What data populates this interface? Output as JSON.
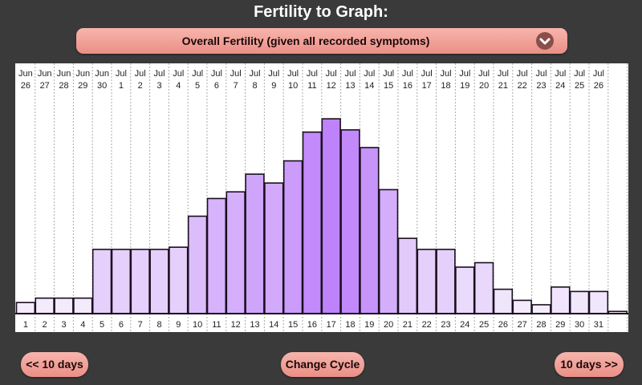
{
  "header": {
    "title": "Fertility to Graph:"
  },
  "selector": {
    "value": "Overall Fertility (given all recorded symptoms)",
    "icon": "chevron-down-icon"
  },
  "buttons": {
    "prev": "<< 10 days",
    "change": "Change Cycle",
    "next": "10 days >>"
  },
  "colors": {
    "background": "#3a3a3a",
    "button": "#f0a098",
    "bar_light": "#f5f0fc",
    "bar_peak": "#c084fa"
  },
  "chart_data": {
    "type": "bar",
    "title": "Overall Fertility (given all recorded symptoms)",
    "xlabel": "Cycle day",
    "ylabel": "Fertility",
    "ylim": [
      0,
      100
    ],
    "grid": "vertical-dotted",
    "date_labels": [
      [
        "Jun",
        "26"
      ],
      [
        "Jun",
        "27"
      ],
      [
        "Jun",
        "28"
      ],
      [
        "Jun",
        "29"
      ],
      [
        "Jun",
        "30"
      ],
      [
        "Jul",
        "1"
      ],
      [
        "Jul",
        "2"
      ],
      [
        "Jul",
        "3"
      ],
      [
        "Jul",
        "4"
      ],
      [
        "Jul",
        "5"
      ],
      [
        "Jul",
        "6"
      ],
      [
        "Jul",
        "7"
      ],
      [
        "Jul",
        "8"
      ],
      [
        "Jul",
        "9"
      ],
      [
        "Jul",
        "10"
      ],
      [
        "Jul",
        "11"
      ],
      [
        "Jul",
        "12"
      ],
      [
        "Jul",
        "13"
      ],
      [
        "Jul",
        "14"
      ],
      [
        "Jul",
        "15"
      ],
      [
        "Jul",
        "16"
      ],
      [
        "Jul",
        "17"
      ],
      [
        "Jul",
        "18"
      ],
      [
        "Jul",
        "19"
      ],
      [
        "Jul",
        "20"
      ],
      [
        "Jul",
        "21"
      ],
      [
        "Jul",
        "22"
      ],
      [
        "Jul",
        "23"
      ],
      [
        "Jul",
        "24"
      ],
      [
        "Jul",
        "25"
      ],
      [
        "Jul",
        "26"
      ],
      [
        "",
        ""
      ]
    ],
    "categories": [
      "1",
      "2",
      "3",
      "4",
      "5",
      "6",
      "7",
      "8",
      "9",
      "10",
      "11",
      "12",
      "13",
      "14",
      "15",
      "16",
      "17",
      "18",
      "19",
      "20",
      "21",
      "22",
      "23",
      "24",
      "25",
      "26",
      "27",
      "28",
      "29",
      "30",
      "31",
      ""
    ],
    "values": [
      5,
      7,
      7,
      7,
      29,
      29,
      29,
      29,
      30,
      44,
      52,
      55,
      63,
      59,
      69,
      82,
      88,
      83,
      75,
      56,
      34,
      29,
      29,
      21,
      23,
      11,
      6,
      4,
      12,
      10,
      10,
      1
    ]
  }
}
